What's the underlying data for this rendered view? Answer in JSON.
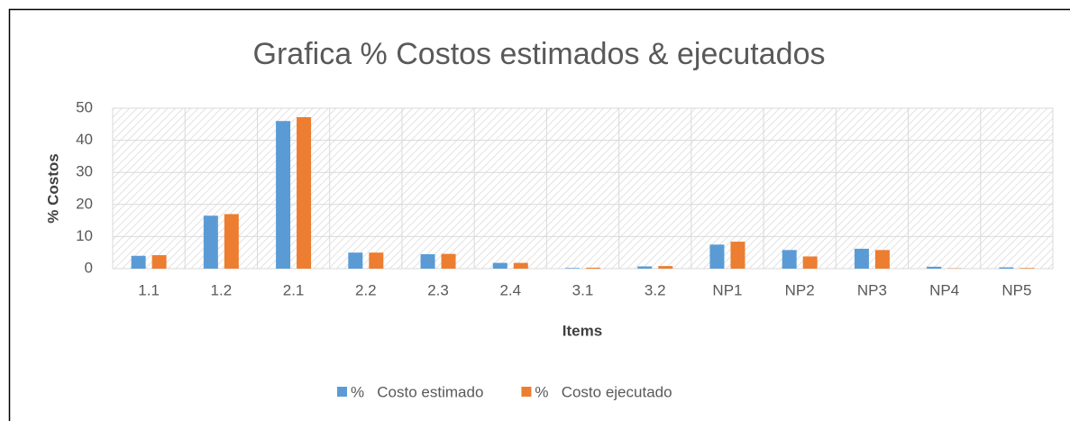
{
  "chart_data": {
    "type": "bar",
    "title": "Grafica % Costos estimados & ejecutados",
    "x_label": "Items",
    "y_label": "% Costos",
    "categories": [
      "1.1",
      "1.2",
      "2.1",
      "2.2",
      "2.3",
      "2.4",
      "3.1",
      "3.2",
      "NP1",
      "NP2",
      "NP3",
      "NP4",
      "NP5"
    ],
    "series": [
      {
        "name": "%   Costo estimado",
        "color": "#5b9bd5",
        "values": [
          4,
          16.5,
          46,
          5,
          4.5,
          1.8,
          0.2,
          0.7,
          7.5,
          5.8,
          6.2,
          0.6,
          0.4
        ]
      },
      {
        "name": "%   Costo ejecutado",
        "color": "#ed7d31",
        "values": [
          4.2,
          17,
          47.2,
          5,
          4.6,
          1.8,
          0.3,
          0.8,
          8.4,
          3.8,
          5.8,
          0.1,
          0.2
        ]
      }
    ],
    "ylim": [
      0,
      50
    ],
    "yticks": [
      0,
      10,
      20,
      30,
      40,
      50
    ],
    "grid": true,
    "legend": "bottom"
  }
}
